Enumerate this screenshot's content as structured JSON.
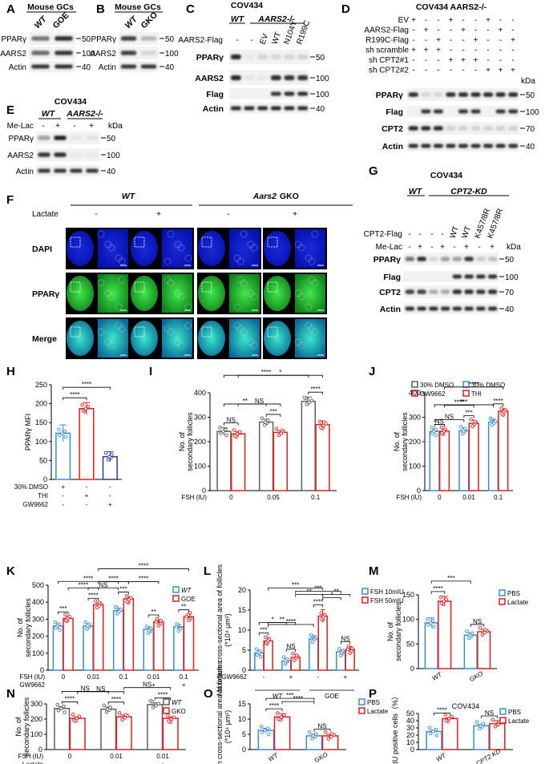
{
  "figure": {
    "panels": {
      "A": {
        "letter": "A",
        "title": "Mouse GCs",
        "lanes": [
          "WT",
          "GOE"
        ],
        "rows": [
          "PPARγ",
          "AARS2",
          "Actin"
        ],
        "kda": [
          "50",
          "100",
          "40"
        ]
      },
      "B": {
        "letter": "B",
        "title": "Mouse GCs",
        "lanes": [
          "WT",
          "GKO"
        ],
        "rows": [
          "PPARγ",
          "AARS2",
          "Actin"
        ],
        "kda": [
          "50",
          "100",
          "40"
        ]
      },
      "C": {
        "letter": "C",
        "title": "COV434",
        "genotypes": [
          "WT",
          "AARS2-/-"
        ],
        "header_row": "AARS2-Flag",
        "lanes": [
          "-",
          "-",
          "EV",
          "WT",
          "N104Y",
          "R199C"
        ],
        "rows": [
          "PPARγ",
          "AARS2",
          "Flag",
          "Actin"
        ],
        "kda": [
          "50",
          "100",
          "100",
          "40"
        ]
      },
      "D": {
        "letter": "D",
        "title": "COV434 AARS2-/-",
        "conditions": [
          {
            "name": "EV",
            "signs": [
              "+",
              "-",
              "-",
              "+",
              "-",
              "-",
              "+",
              "-",
              "-"
            ]
          },
          {
            "name": "AARS2-Flag",
            "signs": [
              "-",
              "+",
              "-",
              "-",
              "+",
              "-",
              "-",
              "+",
              "-"
            ]
          },
          {
            "name": "R199C-Flag",
            "signs": [
              "-",
              "-",
              "+",
              "-",
              "-",
              "+",
              "-",
              "-",
              "+"
            ]
          },
          {
            "name": "sh scramble",
            "signs": [
              "+",
              "+",
              "+",
              "-",
              "-",
              "-",
              "-",
              "-",
              "-"
            ]
          },
          {
            "name": "sh CPT2#1",
            "signs": [
              "-",
              "-",
              "-",
              "+",
              "+",
              "+",
              "-",
              "-",
              "-"
            ]
          },
          {
            "name": "sh CPT2#2",
            "signs": [
              "-",
              "-",
              "-",
              "-",
              "-",
              "-",
              "+",
              "+",
              "+"
            ]
          }
        ],
        "rows": [
          "PPARγ",
          "Flag",
          "CPT2",
          "Actin"
        ],
        "kda": [
          "50",
          "100",
          "70",
          "40"
        ],
        "kda_label": "kDa"
      },
      "E": {
        "letter": "E",
        "title": "COV434",
        "genotypes": [
          "WT",
          "AARS2-/-"
        ],
        "header_row": "Me-Lac",
        "signs": [
          "-",
          "+",
          "-",
          "+"
        ],
        "rows": [
          "PPARγ",
          "AARS2",
          "Actin"
        ],
        "kda": [
          "50",
          "100",
          "40"
        ],
        "kda_label": "kDa"
      },
      "F": {
        "letter": "F",
        "groups": [
          "WT",
          "Aars2 GKO"
        ],
        "treatment_label": "Lactate",
        "treatments": [
          "-",
          "+",
          "-",
          "+"
        ],
        "rows": [
          "DAPI",
          "PPARγ",
          "Merge"
        ]
      },
      "G": {
        "letter": "G",
        "title": "COV434",
        "genotypes": [
          "WT",
          "CPT2-KD"
        ],
        "header_rows": [
          {
            "name": "CPT2-Flag",
            "signs": [
              "-",
              "-",
              "-",
              "-",
              "WT",
              "WT",
              "K457/8R",
              "K457/8R"
            ]
          },
          {
            "name": "Me-Lac",
            "signs": [
              "-",
              "+",
              "-",
              "+",
              "-",
              "+",
              "-",
              "+"
            ]
          }
        ],
        "rows": [
          "PPARγ",
          "Flag",
          "CPT2",
          "Actin"
        ],
        "kda": [
          "50",
          "100",
          "70",
          "40"
        ],
        "kda_label": "kDa"
      },
      "H": {
        "letter": "H"
      },
      "I": {
        "letter": "I"
      },
      "J": {
        "letter": "J"
      },
      "K": {
        "letter": "K"
      },
      "L": {
        "letter": "L"
      },
      "M": {
        "letter": "M"
      },
      "N": {
        "letter": "N"
      },
      "O": {
        "letter": "O"
      },
      "P": {
        "letter": "P"
      }
    }
  },
  "colors": {
    "blue": "#3a8ed0",
    "red": "#e41e1e",
    "gray": "#5f5f5f",
    "navy": "#2d3f8c",
    "dapi": "#1020d8",
    "ppar": "#2dcf3a"
  },
  "chart_data": [
    {
      "id": "H",
      "type": "bar",
      "ylabel": "PPARγ MFI",
      "ylim": [
        0,
        250
      ],
      "yticks": [
        0,
        50,
        100,
        150,
        200,
        250
      ],
      "factor_rows": [
        {
          "name": "30% DMSO",
          "signs": [
            "+",
            "-",
            "-"
          ]
        },
        {
          "name": "THI",
          "signs": [
            "-",
            "+",
            "-"
          ]
        },
        {
          "name": "GW9662",
          "signs": [
            "-",
            "-",
            "+"
          ]
        }
      ],
      "values": [
        122,
        187,
        60
      ],
      "errors": [
        22,
        16,
        13
      ],
      "colors": [
        "blue",
        "red",
        "navy"
      ],
      "sig": [
        {
          "a": 0,
          "b": 1,
          "label": "****"
        },
        {
          "a": 0,
          "b": 2,
          "label": "****"
        }
      ]
    },
    {
      "id": "I",
      "type": "bar",
      "ylabel": "No. of secondary follicles",
      "ylim": [
        0,
        400
      ],
      "yticks": [
        0,
        100,
        200,
        300,
        400
      ],
      "xlabel": "FSH (IU)",
      "categories": [
        "0",
        "0.05",
        "0.1"
      ],
      "series": [
        {
          "name": "30% DMSO",
          "color": "gray",
          "values": [
            242,
            280,
            365
          ],
          "errors": [
            15,
            12,
            18
          ]
        },
        {
          "name": "GW9662",
          "color": "red",
          "values": [
            232,
            238,
            270
          ],
          "errors": [
            10,
            8,
            15
          ]
        }
      ],
      "sig": [
        {
          "a": 0,
          "b": 1,
          "label": "NS"
        },
        {
          "a": 2,
          "b": 3,
          "label": "***"
        },
        {
          "a": 4,
          "b": 5,
          "label": "****"
        },
        {
          "a": 0,
          "b": 2,
          "label": "**"
        },
        {
          "a": 1,
          "b": 3,
          "label": "NS"
        },
        {
          "a": 0,
          "b": 4,
          "label": "****"
        },
        {
          "a": 1,
          "b": 5,
          "label": "*"
        }
      ]
    },
    {
      "id": "J",
      "type": "bar",
      "ylabel": "No. of secondary follicles",
      "ylim": [
        0,
        400
      ],
      "yticks": [
        0,
        100,
        200,
        300,
        400
      ],
      "xlabel": "FSH (IU)",
      "categories": [
        "0",
        "0.01",
        "0.1"
      ],
      "series": [
        {
          "name": "30% DMSO",
          "color": "blue",
          "values": [
            242,
            245,
            280
          ],
          "errors": [
            8,
            12,
            12
          ]
        },
        {
          "name": "THI",
          "color": "red",
          "values": [
            243,
            275,
            325
          ],
          "errors": [
            8,
            12,
            10
          ]
        }
      ],
      "sig": [
        {
          "a": 0,
          "b": 1,
          "label": "NS"
        },
        {
          "a": 2,
          "b": 3,
          "label": "***"
        },
        {
          "a": 4,
          "b": 5,
          "label": "****"
        },
        {
          "a": 0,
          "b": 2,
          "label": "NS"
        },
        {
          "a": 1,
          "b": 3,
          "label": "****"
        },
        {
          "a": 0,
          "b": 4,
          "label": "***"
        },
        {
          "a": 1,
          "b": 5,
          "label": "****"
        }
      ]
    },
    {
      "id": "K",
      "type": "bar",
      "ylabel": "No. of secondary follicles",
      "ylim": [
        0,
        500
      ],
      "yticks": [
        0,
        100,
        200,
        300,
        400,
        500
      ],
      "categories": [
        "0",
        "0.01",
        "0.1",
        "0.01",
        "0.1"
      ],
      "factor_rows": [
        {
          "name": "FSH (IU)",
          "values": [
            "0",
            "0.01",
            "0.1",
            "0.01",
            "0.1"
          ]
        },
        {
          "name": "GW9662",
          "values": [
            "",
            "",
            "",
            "+",
            "+"
          ]
        }
      ],
      "series": [
        {
          "name": "WT",
          "color": "blue",
          "values": [
            260,
            260,
            350,
            240,
            255
          ],
          "errors": [
            15,
            15,
            15,
            15,
            12
          ]
        },
        {
          "name": "GOE",
          "color": "red",
          "values": [
            305,
            385,
            420,
            285,
            315
          ],
          "errors": [
            10,
            10,
            12,
            12,
            12
          ]
        }
      ],
      "sig": [
        {
          "a": 0,
          "b": 1,
          "label": "***"
        },
        {
          "a": 2,
          "b": 3,
          "label": "****"
        },
        {
          "a": 4,
          "b": 5,
          "label": "***"
        },
        {
          "a": 6,
          "b": 7,
          "label": "**"
        },
        {
          "a": 8,
          "b": 9,
          "label": "**"
        },
        {
          "a": 2,
          "b": 4,
          "label": "NS"
        },
        {
          "a": 3,
          "b": 5,
          "label": "****"
        },
        {
          "a": 1,
          "b": 3,
          "label": "****"
        },
        {
          "a": 0,
          "b": 4,
          "label": "****"
        },
        {
          "a": 5,
          "b": 7,
          "label": "****"
        },
        {
          "a": 3,
          "b": 9,
          "label": "****"
        }
      ]
    },
    {
      "id": "L",
      "type": "bar",
      "ylabel": "Maximum cross-sectional area of follicles (*10⁴ μm²)",
      "ylim": [
        0,
        20
      ],
      "yticks": [
        0,
        5,
        10,
        15,
        20
      ],
      "groups": [
        "WT",
        "GOE"
      ],
      "factor_rows": [
        {
          "name": "GW9662",
          "signs": [
            "-",
            "+",
            "-",
            "+"
          ]
        }
      ],
      "series": [
        {
          "name": "FSH 10mIU",
          "color": "blue",
          "values": [
            4.3,
            2.3,
            7.8,
            4.6
          ],
          "errors": [
            0.6,
            0.6,
            0.8,
            0.5
          ]
        },
        {
          "name": "FSH 50mIU",
          "color": "red",
          "values": [
            7.3,
            3.2,
            13.5,
            5.2
          ],
          "errors": [
            0.8,
            0.8,
            1.6,
            0.7
          ]
        }
      ],
      "sig": [
        {
          "a": 0,
          "b": 1,
          "label": "***"
        },
        {
          "a": 2,
          "b": 3,
          "label": "NS"
        },
        {
          "a": 4,
          "b": 5,
          "label": "****"
        },
        {
          "a": 6,
          "b": 7,
          "label": "NS"
        },
        {
          "a": 0,
          "b": 2,
          "label": "*"
        },
        {
          "a": 1,
          "b": 3,
          "label": "**"
        },
        {
          "a": 1,
          "b": 5,
          "label": "***"
        },
        {
          "a": 5,
          "b": 7,
          "label": "**"
        },
        {
          "a": 3,
          "b": 5,
          "label": "**"
        },
        {
          "a": 1,
          "b": 4,
          "label": "****"
        },
        {
          "a": 3,
          "b": 6,
          "label": "***"
        },
        {
          "a": 5,
          "b": 6,
          "label": "*"
        }
      ]
    },
    {
      "id": "M",
      "type": "bar",
      "ylabel": "No. of secondary follicles",
      "ylim": [
        0,
        150
      ],
      "yticks": [
        0,
        50,
        100,
        150
      ],
      "categories": [
        "WT",
        "GKO"
      ],
      "series": [
        {
          "name": "PBS",
          "color": "blue",
          "values": [
            93,
            68
          ],
          "errors": [
            10,
            5
          ]
        },
        {
          "name": "Lactate",
          "color": "red",
          "values": [
            137,
            75
          ],
          "errors": [
            10,
            5
          ]
        }
      ],
      "sig": [
        {
          "a": 0,
          "b": 1,
          "label": "****"
        },
        {
          "a": 0,
          "b": 2,
          "label": "***"
        },
        {
          "a": 2,
          "b": 3,
          "label": "NS"
        }
      ]
    },
    {
      "id": "N",
      "type": "bar",
      "ylabel": "No. of secondary follicles",
      "ylim": [
        0,
        300
      ],
      "yticks": [
        0,
        100,
        200,
        300
      ],
      "categories": [
        "0",
        "0.01",
        "0.01"
      ],
      "factor_rows": [
        {
          "name": "FSH (IU)",
          "values": [
            "0",
            "0.01",
            "0.01"
          ]
        },
        {
          "name": "Lactate",
          "values": [
            "-",
            "-",
            "+"
          ]
        }
      ],
      "series": [
        {
          "name": "WT",
          "color": "gray",
          "values": [
            270,
            265,
            295
          ],
          "errors": [
            12,
            15,
            12
          ]
        },
        {
          "name": "GKO",
          "color": "red",
          "values": [
            205,
            215,
            205
          ],
          "errors": [
            10,
            12,
            10
          ]
        }
      ],
      "sig": [
        {
          "a": 0,
          "b": 1,
          "label": "****"
        },
        {
          "a": 2,
          "b": 3,
          "label": "****"
        },
        {
          "a": 4,
          "b": 5,
          "label": "****"
        },
        {
          "a": 0,
          "b": 2,
          "label": "NS"
        },
        {
          "a": 1,
          "b": 3,
          "label": "NS"
        },
        {
          "a": 3,
          "b": 5,
          "label": "NS"
        }
      ]
    },
    {
      "id": "O",
      "type": "bar",
      "ylabel": "Maximum cross-sectional area of follicles (*10⁴ μm²)",
      "ylim": [
        0,
        15
      ],
      "yticks": [
        0,
        5,
        10,
        15
      ],
      "categories": [
        "WT",
        "GKO"
      ],
      "series": [
        {
          "name": "PBS",
          "color": "blue",
          "values": [
            6.3,
            4.5
          ],
          "errors": [
            0.7,
            0.6
          ]
        },
        {
          "name": "Lactate",
          "color": "red",
          "values": [
            10.7,
            4.5
          ],
          "errors": [
            1.1,
            0.5
          ]
        }
      ],
      "sig": [
        {
          "a": 0,
          "b": 1,
          "label": "****"
        },
        {
          "a": 0,
          "b": 2,
          "label": "***"
        },
        {
          "a": 1,
          "b": 2,
          "label": "****"
        },
        {
          "a": 2,
          "b": 3,
          "label": "NS"
        }
      ]
    },
    {
      "id": "P",
      "type": "bar",
      "title": "COV434",
      "ylabel": "EdU positive cells（%）",
      "ylim": [
        0,
        50
      ],
      "yticks": [
        0,
        10,
        20,
        30,
        40,
        50
      ],
      "categories": [
        "WT",
        "CPT2 KD"
      ],
      "series": [
        {
          "name": "PBS",
          "color": "blue",
          "values": [
            25,
            33
          ],
          "errors": [
            2,
            2
          ]
        },
        {
          "name": "Lactate",
          "color": "red",
          "values": [
            43,
            36
          ],
          "errors": [
            1,
            4
          ]
        }
      ],
      "sig": [
        {
          "a": 0,
          "b": 1,
          "label": "****"
        },
        {
          "a": 2,
          "b": 3,
          "label": "NS"
        }
      ]
    }
  ]
}
